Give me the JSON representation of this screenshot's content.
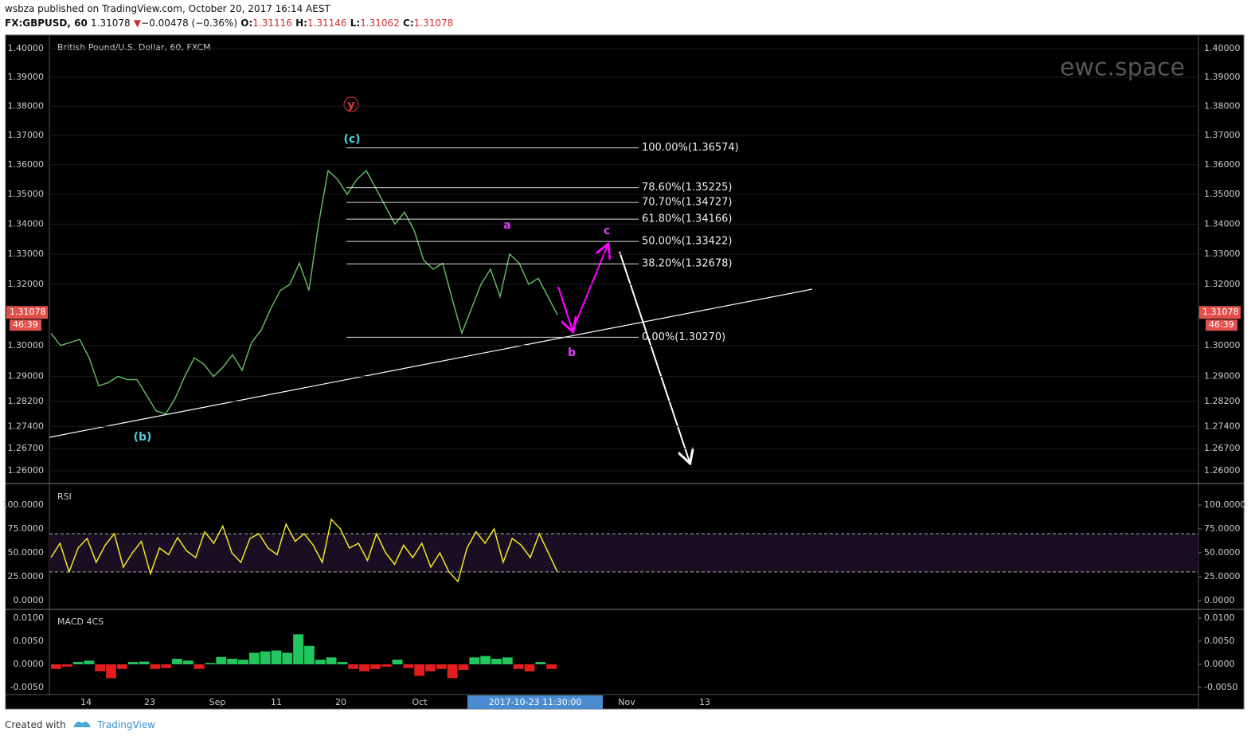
{
  "header": {
    "published": "wsbza published on TradingView.com, October 20, 2017 16:14 AEST",
    "symbol": "FX:GBPUSD, 60",
    "last": "1.31078",
    "arrow": "▼",
    "change": "−0.00478 (−0.36%)",
    "o_label": "O:",
    "open": "1.31116",
    "h_label": "H:",
    "high": "1.31146",
    "l_label": "L:",
    "low": "1.31062",
    "c_label": "C:",
    "close": "1.31078"
  },
  "chart_data": [
    {
      "type": "line",
      "title": "British Pound/U.S. Dollar, 60, FXCM",
      "watermark": "ewc.space",
      "log_scale": true,
      "grid": true,
      "series": [
        {
          "name": "GBPUSD",
          "color": "#5fb85f",
          "values": [
            1.304,
            1.3,
            1.301,
            1.302,
            1.296,
            1.287,
            1.288,
            1.29,
            1.289,
            1.289,
            1.284,
            1.279,
            1.278,
            1.283,
            1.29,
            1.296,
            1.294,
            1.29,
            1.293,
            1.297,
            1.292,
            1.301,
            1.305,
            1.312,
            1.318,
            1.32,
            1.327,
            1.318,
            1.34,
            1.358,
            1.355,
            1.35,
            1.355,
            1.358,
            1.352,
            1.346,
            1.34,
            1.344,
            1.338,
            1.328,
            1.325,
            1.327,
            1.315,
            1.304,
            1.312,
            1.32,
            1.325,
            1.316,
            1.33,
            1.327,
            1.32,
            1.322,
            1.316,
            1.31
          ]
        }
      ],
      "ylim": [
        1.26,
        1.4
      ],
      "yticks": [
        {
          "value": 1.26,
          "label": "1.26000"
        },
        {
          "value": 1.267,
          "label": "1.26700"
        },
        {
          "value": 1.274,
          "label": "1.27400"
        },
        {
          "value": 1.282,
          "label": "1.28200"
        },
        {
          "value": 1.29,
          "label": "1.29000"
        },
        {
          "value": 1.3,
          "label": "1.30000"
        },
        {
          "value": 1.32,
          "label": "1.32000"
        },
        {
          "value": 1.33,
          "label": "1.33000"
        },
        {
          "value": 1.34,
          "label": "1.34000"
        },
        {
          "value": 1.35,
          "label": "1.35000"
        },
        {
          "value": 1.36,
          "label": "1.36000"
        },
        {
          "value": 1.37,
          "label": "1.37000"
        },
        {
          "value": 1.38,
          "label": "1.38000"
        },
        {
          "value": 1.39,
          "label": "1.39000"
        },
        {
          "value": 1.4,
          "label": "1.40000"
        }
      ],
      "price_tag": {
        "value": 1.31078,
        "label": "1.31078",
        "timer": "46:39"
      },
      "fib": {
        "values": [
          1.36574,
          1.35225,
          1.34727,
          1.34166,
          1.33422,
          1.32678,
          1.3027
        ],
        "value_labels": [
          "100.00%(1.36574)",
          "78.60%(1.35225)",
          "70.70%(1.34727)",
          "61.80%(1.34166)",
          "50.00%(1.33422)",
          "38.20%(1.32678)",
          "0.00%(1.30270)"
        ]
      },
      "waves": [
        "y",
        "(c)",
        "(b)",
        "a",
        "b",
        "c"
      ]
    },
    {
      "type": "line",
      "title": "RSI",
      "color": "#f5e626",
      "ylim": [
        0,
        100
      ],
      "bands": [
        30,
        70
      ],
      "yticks": [
        {
          "value": 0,
          "label": "0.0000"
        },
        {
          "value": 25,
          "label": "25.0000"
        },
        {
          "value": 50,
          "label": "50.0000"
        },
        {
          "value": 75,
          "label": "75.0000"
        },
        {
          "value": 100,
          "label": "100.0000"
        }
      ],
      "values": [
        45,
        60,
        30,
        55,
        65,
        40,
        58,
        70,
        35,
        50,
        62,
        28,
        55,
        48,
        66,
        52,
        45,
        72,
        60,
        78,
        50,
        40,
        65,
        70,
        55,
        48,
        80,
        62,
        70,
        58,
        40,
        85,
        75,
        55,
        60,
        42,
        70,
        50,
        38,
        58,
        45,
        60,
        35,
        50,
        30,
        20,
        55,
        72,
        60,
        75,
        40,
        65,
        58,
        45,
        70,
        50,
        30
      ]
    },
    {
      "type": "bar",
      "title": "MACD 4CS",
      "ylim": [
        -0.005,
        0.01
      ],
      "yticks": [
        {
          "value": -0.005,
          "label": "-0.0050"
        },
        {
          "value": 0,
          "label": "0.0000"
        },
        {
          "value": 0.005,
          "label": "0.0050"
        },
        {
          "value": 0.01,
          "label": "0.0100"
        }
      ],
      "values": [
        -0.001,
        -0.0005,
        0.0005,
        0.0008,
        -0.0015,
        -0.003,
        -0.001,
        0.0005,
        0.0006,
        -0.001,
        -0.0008,
        0.0012,
        0.0008,
        -0.001,
        0.0003,
        0.0016,
        0.0012,
        0.001,
        0.0025,
        0.0028,
        0.003,
        0.0025,
        0.0065,
        0.004,
        0.001,
        0.0015,
        0.0005,
        -0.001,
        -0.0015,
        -0.001,
        -0.0005,
        0.001,
        -0.0008,
        -0.0025,
        -0.0015,
        -0.001,
        -0.003,
        -0.0012,
        0.0015,
        0.0018,
        0.0012,
        0.0015,
        -0.001,
        -0.0015,
        0.0005,
        -0.001
      ]
    }
  ],
  "xaxis": {
    "labels": [
      "14",
      "23",
      "Sep",
      "11",
      "20",
      "Oct",
      "Nov",
      "13"
    ],
    "crosshair": "2017-10-23 11:30:00"
  },
  "footer": {
    "created": "Created with",
    "brand": "TradingView"
  }
}
